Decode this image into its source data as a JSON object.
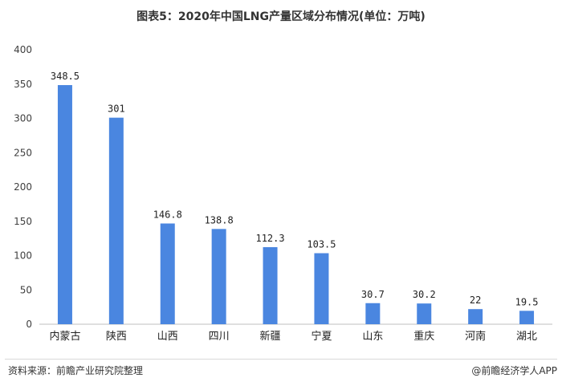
{
  "title": "图表5：2020年中国LNG产量区域分布情况(单位：万吨)",
  "source": "资料来源：前瞻产业研究院整理",
  "brand": "@前瞻经济学人APP",
  "colors": {
    "bar": "#4a86e0"
  },
  "chart_data": {
    "type": "bar",
    "categories": [
      "内蒙古",
      "陕西",
      "山西",
      "四川",
      "新疆",
      "宁夏",
      "山东",
      "重庆",
      "河南",
      "湖北"
    ],
    "values": [
      348.5,
      301,
      146.8,
      138.8,
      112.3,
      103.5,
      30.7,
      30.2,
      22,
      19.5
    ],
    "value_labels": [
      "348.5",
      "301",
      "146.8",
      "138.8",
      "112.3",
      "103.5",
      "30.7",
      "30.2",
      "22",
      "19.5"
    ],
    "yticks": [
      "0",
      "50",
      "100",
      "150",
      "200",
      "250",
      "300",
      "350",
      "400"
    ],
    "ylim": [
      0,
      400
    ],
    "grid": false,
    "legend": "none"
  }
}
